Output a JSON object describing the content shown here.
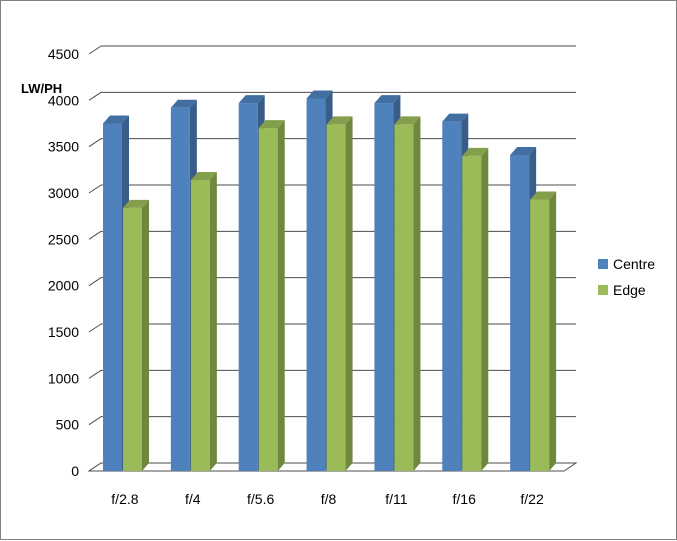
{
  "chart_data": {
    "type": "bar",
    "title": "",
    "xlabel": "",
    "ylabel": "LW/PH",
    "categories": [
      "f/2.8",
      "f/4",
      "f/5.6",
      "f/8",
      "f/11",
      "f/16",
      "f/22"
    ],
    "series": [
      {
        "name": "Centre",
        "color": "#4f81bd",
        "values": [
          3750,
          3920,
          3970,
          4020,
          3970,
          3770,
          3410
        ]
      },
      {
        "name": "Edge",
        "color": "#9bbb59",
        "values": [
          2840,
          3140,
          3700,
          3740,
          3740,
          3400,
          2930
        ]
      }
    ],
    "ylim": [
      0,
      4500
    ],
    "yticks": [
      "0",
      "500",
      "1000",
      "1500",
      "2000",
      "2500",
      "3000",
      "3500",
      "4000",
      "4500"
    ],
    "grid": true,
    "legend_position": "right",
    "style": "3d-clustered-column"
  }
}
